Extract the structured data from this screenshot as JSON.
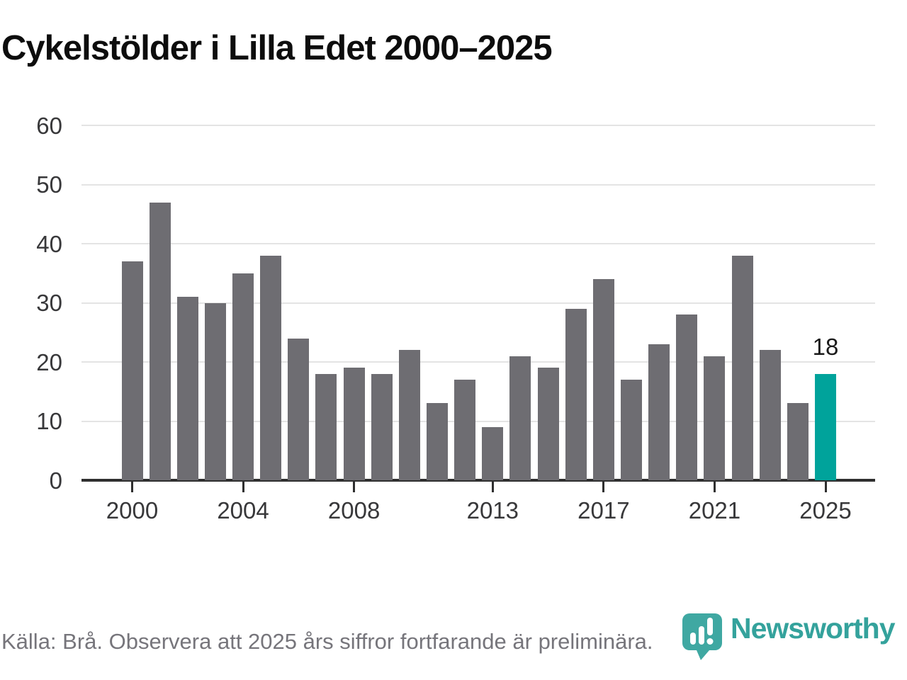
{
  "title": "Cykelstölder i Lilla Edet 2000–2025",
  "chart_data": {
    "type": "bar",
    "title": "Cykelstölder i Lilla Edet 2000–2025",
    "x": [
      2000,
      2001,
      2002,
      2003,
      2004,
      2005,
      2006,
      2007,
      2008,
      2009,
      2010,
      2011,
      2012,
      2013,
      2014,
      2015,
      2016,
      2017,
      2018,
      2019,
      2020,
      2021,
      2022,
      2023,
      2024,
      2025
    ],
    "values": [
      37,
      47,
      31,
      30,
      35,
      38,
      24,
      18,
      19,
      18,
      22,
      13,
      17,
      9,
      21,
      19,
      29,
      34,
      17,
      23,
      28,
      21,
      38,
      22,
      13,
      18
    ],
    "highlight_year": 2025,
    "annotation": {
      "year": 2025,
      "label": "18"
    },
    "xticks": [
      2000,
      2004,
      2008,
      2013,
      2017,
      2021,
      2025
    ],
    "yticks": [
      0,
      10,
      20,
      30,
      40,
      50,
      60
    ],
    "ylim": [
      0,
      60
    ],
    "xlabel": "",
    "ylabel": "",
    "grid": true,
    "legend": false,
    "bar_color": "#6e6d72",
    "highlight_color": "#00a39b"
  },
  "footer": {
    "source_note": "Källa: Brå. Observera att 2025 års siffror fortfarande är preliminära.",
    "logo_text": "Newsworthy"
  },
  "colors": {
    "background": "#ffffff",
    "title_text": "#0d0d0d",
    "axis_text": "#38383a",
    "axis_line": "#2f2f2f",
    "gridline": "#e4e4e4",
    "footer_text": "#76757b",
    "logo_teal": "#34a29c"
  }
}
